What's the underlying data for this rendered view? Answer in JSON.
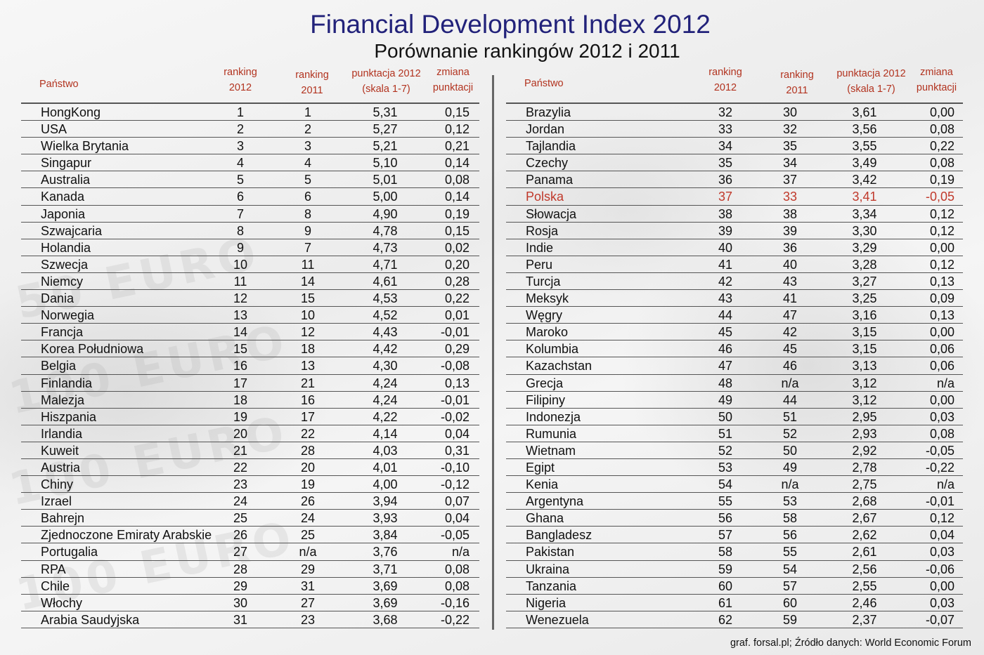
{
  "title": "Financial Development Index 2012",
  "subtitle": "Porównanie rankingów 2012 i 2011",
  "columns": {
    "name": "Państwo",
    "rank2012_line1": "ranking",
    "rank2012_line2": "2012",
    "rank2011_line1": "ranking",
    "rank2011_line2": "2011",
    "score_line1": "punktacja 2012",
    "score_line2": "(skala 1-7)",
    "change_line1": "zmiana",
    "change_line2": "punktacji"
  },
  "highlight_color": "#c0392b",
  "header_color": "#b2331f",
  "title_color": "#22227a",
  "footer": "graf. forsal.pl; Źródło danych: World Economic Forum",
  "chart_data": {
    "type": "table",
    "title": "Financial Development Index 2012",
    "subtitle": "Porównanie rankingów 2012 i 2011",
    "headers": [
      "Państwo",
      "ranking 2012",
      "ranking 2011",
      "punktacja 2012 (skala 1-7)",
      "zmiana punktacji"
    ],
    "highlighted_row": "Polska",
    "rows": [
      [
        "HongKong",
        "1",
        "1",
        "5,31",
        "0,15"
      ],
      [
        "USA",
        "2",
        "2",
        "5,27",
        "0,12"
      ],
      [
        "Wielka Brytania",
        "3",
        "3",
        "5,21",
        "0,21"
      ],
      [
        "Singapur",
        "4",
        "4",
        "5,10",
        "0,14"
      ],
      [
        "Australia",
        "5",
        "5",
        "5,01",
        "0,08"
      ],
      [
        "Kanada",
        "6",
        "6",
        "5,00",
        "0,14"
      ],
      [
        "Japonia",
        "7",
        "8",
        "4,90",
        "0,19"
      ],
      [
        "Szwajcaria",
        "8",
        "9",
        "4,78",
        "0,15"
      ],
      [
        "Holandia",
        "9",
        "7",
        "4,73",
        "0,02"
      ],
      [
        "Szwecja",
        "10",
        "11",
        "4,71",
        "0,20"
      ],
      [
        "Niemcy",
        "11",
        "14",
        "4,61",
        "0,28"
      ],
      [
        "Dania",
        "12",
        "15",
        "4,53",
        "0,22"
      ],
      [
        "Norwegia",
        "13",
        "10",
        "4,52",
        "0,01"
      ],
      [
        "Francja",
        "14",
        "12",
        "4,43",
        "-0,01"
      ],
      [
        "Korea Południowa",
        "15",
        "18",
        "4,42",
        "0,29"
      ],
      [
        "Belgia",
        "16",
        "13",
        "4,30",
        "-0,08"
      ],
      [
        "Finlandia",
        "17",
        "21",
        "4,24",
        "0,13"
      ],
      [
        "Malezja",
        "18",
        "16",
        "4,24",
        "-0,01"
      ],
      [
        "Hiszpania",
        "19",
        "17",
        "4,22",
        "-0,02"
      ],
      [
        "Irlandia",
        "20",
        "22",
        "4,14",
        "0,04"
      ],
      [
        "Kuweit",
        "21",
        "28",
        "4,03",
        "0,31"
      ],
      [
        "Austria",
        "22",
        "20",
        "4,01",
        "-0,10"
      ],
      [
        "Chiny",
        "23",
        "19",
        "4,00",
        "-0,12"
      ],
      [
        "Izrael",
        "24",
        "26",
        "3,94",
        "0,07"
      ],
      [
        "Bahrejn",
        "25",
        "24",
        "3,93",
        "0,04"
      ],
      [
        "Zjednoczone Emiraty Arabskie",
        "26",
        "25",
        "3,84",
        "-0,05"
      ],
      [
        "Portugalia",
        "27",
        "n/a",
        "3,76",
        "n/a"
      ],
      [
        "RPA",
        "28",
        "29",
        "3,71",
        "0,08"
      ],
      [
        "Chile",
        "29",
        "31",
        "3,69",
        "0,08"
      ],
      [
        "Włochy",
        "30",
        "27",
        "3,69",
        "-0,16"
      ],
      [
        "Arabia Saudyjska",
        "31",
        "23",
        "3,68",
        "-0,22"
      ],
      [
        "Brazylia",
        "32",
        "30",
        "3,61",
        "0,00"
      ],
      [
        "Jordan",
        "33",
        "32",
        "3,56",
        "0,08"
      ],
      [
        "Tajlandia",
        "34",
        "35",
        "3,55",
        "0,22"
      ],
      [
        "Czechy",
        "35",
        "34",
        "3,49",
        "0,08"
      ],
      [
        "Panama",
        "36",
        "37",
        "3,42",
        "0,19"
      ],
      [
        "Polska",
        "37",
        "33",
        "3,41",
        "-0,05"
      ],
      [
        "Słowacja",
        "38",
        "38",
        "3,34",
        "0,12"
      ],
      [
        "Rosja",
        "39",
        "39",
        "3,30",
        "0,12"
      ],
      [
        "Indie",
        "40",
        "36",
        "3,29",
        "0,00"
      ],
      [
        "Peru",
        "41",
        "40",
        "3,28",
        "0,12"
      ],
      [
        "Turcja",
        "42",
        "43",
        "3,27",
        "0,13"
      ],
      [
        "Meksyk",
        "43",
        "41",
        "3,25",
        "0,09"
      ],
      [
        "Węgry",
        "44",
        "47",
        "3,16",
        "0,13"
      ],
      [
        "Maroko",
        "45",
        "42",
        "3,15",
        "0,00"
      ],
      [
        "Kolumbia",
        "46",
        "45",
        "3,15",
        "0,06"
      ],
      [
        "Kazachstan",
        "47",
        "46",
        "3,13",
        "0,06"
      ],
      [
        "Grecja",
        "48",
        "n/a",
        "3,12",
        "n/a"
      ],
      [
        "Filipiny",
        "49",
        "44",
        "3,12",
        "0,00"
      ],
      [
        "Indonezja",
        "50",
        "51",
        "2,95",
        "0,03"
      ],
      [
        "Rumunia",
        "51",
        "52",
        "2,93",
        "0,08"
      ],
      [
        "Wietnam",
        "52",
        "50",
        "2,92",
        "-0,05"
      ],
      [
        "Egipt",
        "53",
        "49",
        "2,78",
        "-0,22"
      ],
      [
        "Kenia",
        "54",
        "n/a",
        "2,75",
        "n/a"
      ],
      [
        "Argentyna",
        "55",
        "53",
        "2,68",
        "-0,01"
      ],
      [
        "Ghana",
        "56",
        "58",
        "2,67",
        "0,12"
      ],
      [
        "Bangladesz",
        "57",
        "56",
        "2,62",
        "0,04"
      ],
      [
        "Pakistan",
        "58",
        "55",
        "2,61",
        "0,03"
      ],
      [
        "Ukraina",
        "59",
        "54",
        "2,56",
        "-0,06"
      ],
      [
        "Tanzania",
        "60",
        "57",
        "2,55",
        "0,00"
      ],
      [
        "Nigeria",
        "61",
        "60",
        "2,46",
        "0,03"
      ],
      [
        "Wenezuela",
        "62",
        "59",
        "2,37",
        "-0,07"
      ]
    ]
  }
}
